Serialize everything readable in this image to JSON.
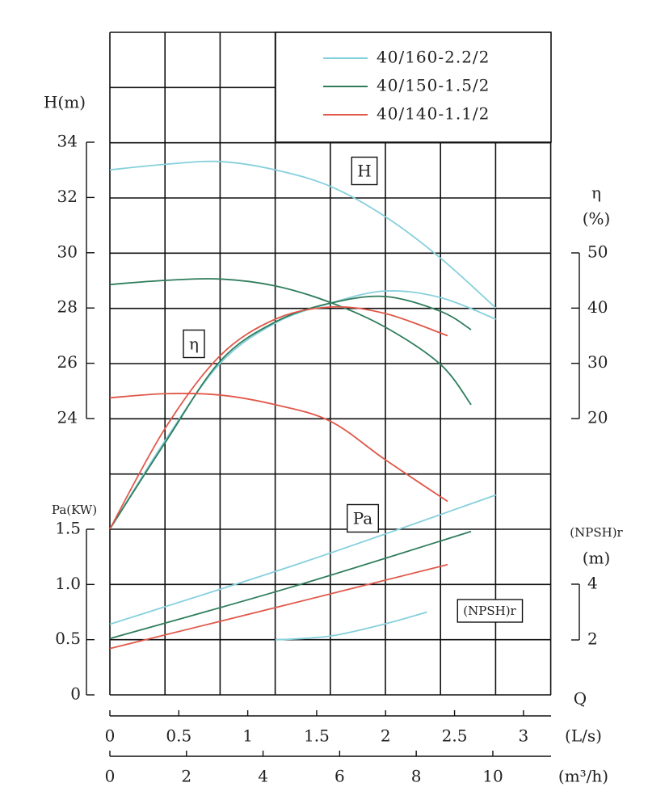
{
  "chart_data": {
    "type": "line",
    "x_label": "Q",
    "x_unit": "(L/s)",
    "xlim": [
      0,
      3.2
    ],
    "xticks": [
      0,
      0.5,
      1,
      1.5,
      2,
      2.5,
      3
    ],
    "x2_unit": "(m³/h)",
    "x2lim": [
      0,
      11.52
    ],
    "x2ticks": [
      0,
      2,
      4,
      6,
      8,
      10
    ],
    "y_label": "H(m)",
    "ylim": [
      24,
      34
    ],
    "yticks": [
      24,
      26,
      28,
      30,
      32,
      34
    ],
    "y2_label": [
      "η",
      "(%)"
    ],
    "y2lim": [
      20,
      50
    ],
    "y2ticks": [
      20,
      30,
      40,
      50
    ],
    "y3_label": "Pa(KW)",
    "y3lim": [
      0,
      1.5
    ],
    "y3ticks": [
      0,
      {
        "value": 0.5,
        "label": "0.5"
      },
      {
        "value": 1,
        "label": "1.0"
      },
      1.5
    ],
    "y4_label": [
      "(NPSH)r",
      "(m)"
    ],
    "y4lim": [
      2,
      4
    ],
    "y4ticks": [
      2,
      4
    ],
    "annotations": [
      "H",
      "η",
      "Pa",
      "(NPSH)r"
    ],
    "grid": true,
    "legend": "top-right",
    "series": [
      {
        "name": "40/160-2.2/2",
        "color": "#86d0dc",
        "H": {
          "x": [
            0,
            0.4,
            0.8,
            1.2,
            1.6,
            2.0,
            2.4,
            2.8
          ],
          "values": [
            33.0,
            33.2,
            33.3,
            33.0,
            32.4,
            31.3,
            29.8,
            28.0
          ]
        },
        "eta": {
          "x": [
            0,
            0.4,
            0.8,
            1.2,
            1.6,
            2.0,
            2.4,
            2.8
          ],
          "values": [
            0,
            16,
            30,
            37.3,
            40.9,
            43.1,
            41.9,
            38.0
          ]
        },
        "Pa": {
          "x": [
            0,
            1.4,
            2.8
          ],
          "values": [
            0.64,
            1.2,
            1.81
          ]
        },
        "NPSH": {
          "x": [
            1.2,
            1.6,
            2.0,
            2.3
          ],
          "values": [
            2.0,
            2.14,
            2.58,
            3.0
          ]
        }
      },
      {
        "name": "40/150-1.5/2",
        "color": "#2f7d5c",
        "H": {
          "x": [
            0,
            0.4,
            0.8,
            1.2,
            1.6,
            2.0,
            2.4,
            2.62
          ],
          "values": [
            28.85,
            29.0,
            29.05,
            28.8,
            28.2,
            27.3,
            25.95,
            24.5
          ]
        },
        "eta": {
          "x": [
            0,
            0.4,
            0.8,
            1.2,
            1.6,
            2.0,
            2.4,
            2.62
          ],
          "values": [
            0,
            15.6,
            30.4,
            37.5,
            40.9,
            42.1,
            39.4,
            36.1
          ]
        },
        "Pa": {
          "x": [
            0,
            1.3,
            2.62
          ],
          "values": [
            0.51,
            0.97,
            1.48
          ]
        }
      },
      {
        "name": "40/140-1.1/2",
        "color": "#e0584a",
        "H": {
          "x": [
            0,
            0.4,
            0.8,
            1.2,
            1.6,
            2.0,
            2.45
          ],
          "values": [
            24.75,
            24.9,
            24.85,
            24.5,
            23.9,
            22.5,
            21.0
          ]
        },
        "eta": {
          "x": [
            0,
            0.4,
            0.8,
            1.2,
            1.6,
            2.0,
            2.45
          ],
          "values": [
            0,
            18.2,
            31.4,
            38,
            40.2,
            39,
            35
          ]
        },
        "Pa": {
          "x": [
            0,
            1.2,
            2.45
          ],
          "values": [
            0.42,
            0.79,
            1.18
          ]
        }
      }
    ]
  }
}
